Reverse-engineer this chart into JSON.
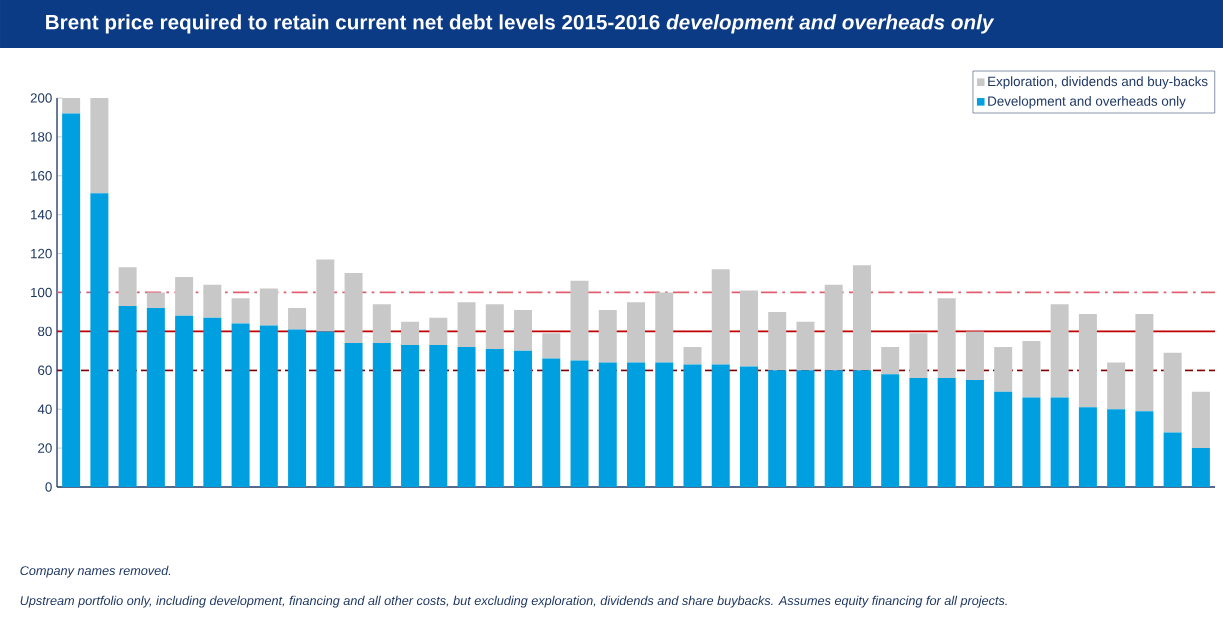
{
  "chart_data": {
    "type": "bar",
    "title": "Brent price required to retain current net debt levels 2015-2016 *development and overheads only*",
    "categories": [
      null,
      null,
      null,
      null,
      null,
      null,
      null,
      null,
      null,
      null,
      null,
      null,
      null,
      null,
      null,
      null,
      null,
      null,
      null,
      null,
      null,
      null,
      null,
      null,
      null,
      null,
      null,
      null,
      null,
      null,
      null,
      null,
      null,
      null,
      null,
      null,
      null,
      null,
      null,
      null,
      null
    ],
    "stacked": true,
    "series": [
      {
        "name": "Development and overheads only",
        "color": "#00a0e0",
        "values": [
          192,
          151,
          93,
          92,
          88,
          87,
          84,
          83,
          81,
          80,
          74,
          74,
          73,
          73,
          72,
          71,
          70,
          66,
          65,
          64,
          64,
          64,
          63,
          63,
          62,
          60,
          60,
          60,
          60,
          58,
          56,
          56,
          55,
          49,
          46,
          46,
          41,
          40,
          39,
          28,
          20
        ]
      },
      {
        "name": "Exploration, dividends and buy-backs",
        "color": "#c8c8c8",
        "values": [
          8,
          49,
          20,
          8,
          20,
          17,
          13,
          19,
          11,
          37,
          36,
          20,
          12,
          14,
          23,
          23,
          21,
          13,
          41,
          27,
          31,
          36,
          9,
          49,
          39,
          30,
          25,
          44,
          54,
          14,
          23,
          41,
          25,
          23,
          29,
          48,
          48,
          24,
          50,
          41,
          29
        ]
      }
    ],
    "ylim": [
      0,
      200
    ],
    "yticks": [
      0,
      20,
      40,
      60,
      80,
      100,
      120,
      140,
      160,
      180,
      200
    ],
    "grid": false,
    "legend": "top right",
    "ref_lines": [
      {
        "axis": "y",
        "value": 100,
        "color": "#e06070",
        "line_style": "dashdot"
      },
      {
        "axis": "y",
        "value": 80,
        "color": "#c00000",
        "line_style": "solid"
      },
      {
        "axis": "y",
        "value": 60,
        "color": "#800000",
        "line_style": "dashed"
      }
    ],
    "annotations": [
      "*Company names removed.*",
      "*Upstream portfolio only, including development, financing and all other costs, but excluding exploration, dividends and share buybacks. Assumes equity financing for all projects.*"
    ]
  }
}
